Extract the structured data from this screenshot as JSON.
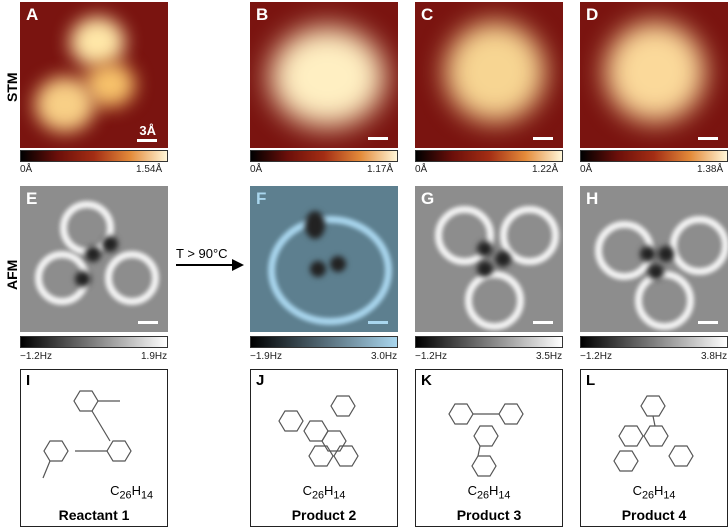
{
  "row_labels": {
    "stm": "STM",
    "afm": "AFM"
  },
  "panels": {
    "A": {
      "label": "A",
      "min": "0Å",
      "max": "1.54Å",
      "scale": "3Å"
    },
    "B": {
      "label": "B",
      "min": "0Å",
      "max": "1.17Å"
    },
    "C": {
      "label": "C",
      "min": "0Å",
      "max": "1.22Å"
    },
    "D": {
      "label": "D",
      "min": "0Å",
      "max": "1.38Å"
    },
    "E": {
      "label": "E",
      "min": "−1.2Hz",
      "max": "1.9Hz"
    },
    "F": {
      "label": "F",
      "min": "−1.9Hz",
      "max": "3.0Hz"
    },
    "G": {
      "label": "G",
      "min": "−1.2Hz",
      "max": "3.5Hz"
    },
    "H": {
      "label": "H",
      "min": "−1.2Hz",
      "max": "3.8Hz"
    }
  },
  "arrow": {
    "text": "T > 90°C"
  },
  "structures": [
    {
      "label": "I",
      "formula_base": "C",
      "formula_c": "26",
      "formula_h": "14",
      "name": "Reactant 1"
    },
    {
      "label": "J",
      "formula_base": "C",
      "formula_c": "26",
      "formula_h": "14",
      "name": "Product 2"
    },
    {
      "label": "K",
      "formula_base": "C",
      "formula_c": "26",
      "formula_h": "14",
      "name": "Product 3"
    },
    {
      "label": "L",
      "formula_base": "C",
      "formula_c": "26",
      "formula_h": "14",
      "name": "Product 4"
    }
  ],
  "colors": {
    "stm_low": "#000000",
    "stm_mid": "#a32d14",
    "stm_high": "#fff6d8",
    "afm_blue": "#a9d6ee"
  }
}
